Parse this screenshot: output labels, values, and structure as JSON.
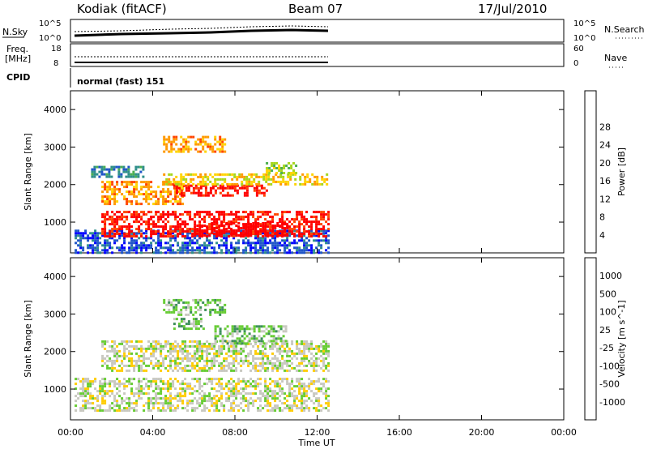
{
  "header": {
    "station": "Kodiak (fitACF)",
    "beam": "Beam 07",
    "date": "17/Jul/2010"
  },
  "strip_panels": {
    "nsky_label": "N.Sky",
    "nsky_ticks": [
      "10^5",
      "10^0"
    ],
    "nsearch_label": "N.Search",
    "nsearch_ticks": [
      "10^5",
      "10^0"
    ],
    "freq_label": "Freq.",
    "freq_unit": "[MHz]",
    "freq_ticks": [
      "18",
      "8"
    ],
    "nave_label": "Nave",
    "nave_ticks": [
      "60",
      "0"
    ],
    "cpid_label": "CPID",
    "cpid_value": "normal (fast) 151"
  },
  "chart_data": [
    {
      "type": "heatmap",
      "name": "power",
      "ylabel": "Slant Range [km]",
      "xlabel": "Time UT",
      "ylim": [
        180,
        4500
      ],
      "xlim": [
        0,
        24
      ],
      "y_ticks": [
        "1000",
        "2000",
        "3000",
        "4000"
      ],
      "x_ticks": [
        "00:00",
        "04:00",
        "08:00",
        "12:00",
        "16:00",
        "20:00",
        "00:00"
      ],
      "colorbar": {
        "label": "Power [dB]",
        "ticks": [
          "4",
          "8",
          "12",
          "16",
          "20",
          "24",
          "28"
        ],
        "colors": [
          "#0000ff",
          "#1f55c8",
          "#2f8f8a",
          "#4caf50",
          "#a6d61e",
          "#ffd400",
          "#ff9900",
          "#ff4500",
          "#ff0000"
        ]
      },
      "regions": [
        {
          "t0": 0.2,
          "t1": 12.5,
          "r0": 200,
          "r1": 800,
          "level": 1
        },
        {
          "t0": 1.5,
          "t1": 12.5,
          "r0": 600,
          "r1": 1300,
          "level": 8
        },
        {
          "t0": 6.0,
          "t1": 10.5,
          "r0": 650,
          "r1": 1000,
          "level": 9
        },
        {
          "t0": 1.5,
          "t1": 5.5,
          "r0": 1500,
          "r1": 2100,
          "level": 6
        },
        {
          "t0": 5.0,
          "t1": 9.5,
          "r0": 1700,
          "r1": 2000,
          "level": 8
        },
        {
          "t0": 4.5,
          "t1": 12.5,
          "r0": 2000,
          "r1": 2300,
          "level": 5
        },
        {
          "t0": 1.0,
          "t1": 3.5,
          "r0": 2200,
          "r1": 2500,
          "level": 2
        },
        {
          "t0": 4.5,
          "t1": 7.5,
          "r0": 2900,
          "r1": 3300,
          "level": 6
        },
        {
          "t0": 9.5,
          "t1": 11.0,
          "r0": 2300,
          "r1": 2600,
          "level": 4
        }
      ]
    },
    {
      "type": "heatmap",
      "name": "velocity",
      "ylabel": "Slant Range [km]",
      "xlabel": "Time UT",
      "ylim": [
        180,
        4500
      ],
      "xlim": [
        0,
        24
      ],
      "y_ticks": [
        "1000",
        "2000",
        "3000",
        "4000"
      ],
      "x_ticks": [
        "00:00",
        "04:00",
        "08:00",
        "12:00",
        "16:00",
        "20:00",
        "00:00"
      ],
      "colorbar": {
        "label": "Velocity [m s^-1]",
        "ticks": [
          "1000",
          "500",
          "100",
          "25",
          "-25",
          "-100",
          "-500",
          "-1000"
        ],
        "colors": [
          "#0000cc",
          "#2e5fb0",
          "#3d8f5a",
          "#66cc33",
          "#c8c8c0",
          "#ffcc00",
          "#ff9900",
          "#ff5500",
          "#ff0000"
        ]
      },
      "regions": [
        {
          "t0": 0.2,
          "t1": 12.5,
          "r0": 400,
          "r1": 1300,
          "level": 4
        },
        {
          "t0": 1.5,
          "t1": 12.5,
          "r0": 1500,
          "r1": 2300,
          "level": 4
        },
        {
          "t0": 4.5,
          "t1": 7.5,
          "r0": 3000,
          "r1": 3400,
          "level": 3
        },
        {
          "t0": 7.0,
          "t1": 10.5,
          "r0": 2200,
          "r1": 2700,
          "level": 3
        },
        {
          "t0": 5.0,
          "t1": 6.5,
          "r0": 2600,
          "r1": 2900,
          "level": 3
        }
      ]
    }
  ]
}
